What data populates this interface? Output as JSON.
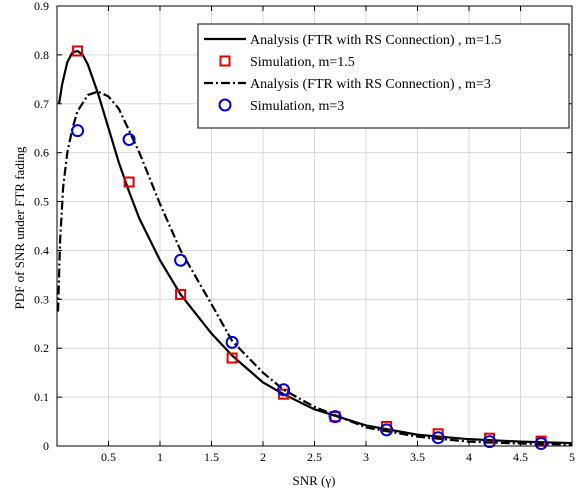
{
  "chart_data": {
    "type": "line",
    "xlabel": "SNR (γ)",
    "ylabel": "PDF of SNR under FTR fading",
    "xlim": [
      0,
      5
    ],
    "ylim": [
      0,
      0.9
    ],
    "xticks": [
      0.5,
      1,
      1.5,
      2,
      2.5,
      3,
      3.5,
      4,
      4.5,
      5
    ],
    "xtick_labels": [
      "0.5",
      "1",
      "1.5",
      "2",
      "2.5",
      "3",
      "3.5",
      "4",
      "4.5",
      "5"
    ],
    "yticks": [
      0,
      0.1,
      0.2,
      0.3,
      0.4,
      0.5,
      0.6,
      0.7,
      0.8,
      0.9
    ],
    "ytick_labels": [
      "0",
      "0.1",
      "0.2",
      "0.3",
      "0.4",
      "0.5",
      "0.6",
      "0.7",
      "0.8",
      "0.9"
    ],
    "grid": true,
    "legend_position": "top-right",
    "series": [
      {
        "name": "Analysis (FTR with RS Connection) , m=1.5",
        "kind": "line",
        "style": "solid",
        "color": "#000000",
        "x": [
          0.02,
          0.05,
          0.1,
          0.15,
          0.2,
          0.25,
          0.3,
          0.4,
          0.5,
          0.6,
          0.7,
          0.8,
          1.0,
          1.2,
          1.5,
          1.7,
          2.0,
          2.2,
          2.5,
          3.0,
          3.5,
          4.0,
          4.5,
          5.0
        ],
        "y": [
          0.7,
          0.74,
          0.785,
          0.805,
          0.808,
          0.8,
          0.78,
          0.72,
          0.65,
          0.58,
          0.52,
          0.465,
          0.38,
          0.31,
          0.23,
          0.185,
          0.13,
          0.106,
          0.075,
          0.042,
          0.023,
          0.014,
          0.009,
          0.006
        ]
      },
      {
        "name": "Simulation, m=1.5",
        "kind": "marker",
        "marker": "square",
        "color": "#e00000",
        "x": [
          0.2,
          0.7,
          1.2,
          1.7,
          2.2,
          2.7,
          3.2,
          3.7,
          4.2,
          4.7
        ],
        "y": [
          0.808,
          0.54,
          0.31,
          0.18,
          0.106,
          0.06,
          0.04,
          0.025,
          0.016,
          0.01
        ]
      },
      {
        "name": "Analysis (FTR with RS Connection) , m=3",
        "kind": "line",
        "style": "dashdot",
        "color": "#000000",
        "x": [
          0.01,
          0.03,
          0.06,
          0.1,
          0.15,
          0.2,
          0.3,
          0.4,
          0.5,
          0.6,
          0.7,
          0.8,
          1.0,
          1.2,
          1.5,
          1.7,
          2.0,
          2.2,
          2.5,
          3.0,
          3.5,
          4.0,
          4.5,
          5.0
        ],
        "y": [
          0.275,
          0.42,
          0.53,
          0.6,
          0.65,
          0.685,
          0.718,
          0.725,
          0.715,
          0.69,
          0.645,
          0.6,
          0.495,
          0.4,
          0.29,
          0.215,
          0.15,
          0.115,
          0.08,
          0.038,
          0.019,
          0.009,
          0.005,
          0.003
        ]
      },
      {
        "name": "Simulation, m=3",
        "kind": "marker",
        "marker": "circle",
        "color": "#0000e0",
        "x": [
          0.2,
          0.7,
          1.2,
          1.7,
          2.2,
          2.7,
          3.2,
          3.7,
          4.2,
          4.7
        ],
        "y": [
          0.645,
          0.627,
          0.38,
          0.212,
          0.115,
          0.06,
          0.033,
          0.017,
          0.009,
          0.005
        ]
      }
    ]
  }
}
